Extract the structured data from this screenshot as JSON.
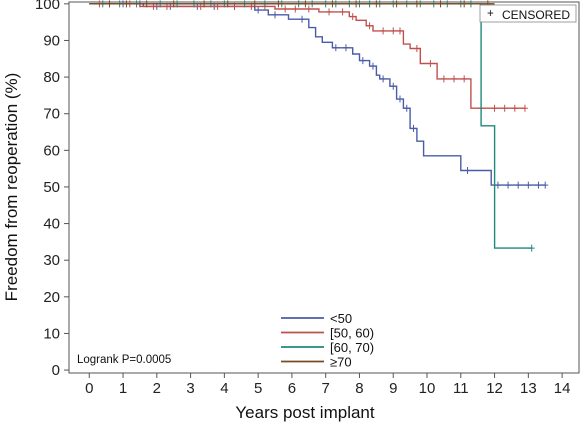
{
  "chart_data": {
    "type": "line",
    "step": true,
    "xlabel": "Years post implant",
    "ylabel": "Freedom from reoperation (%)",
    "xlim": [
      -0.6,
      14.5
    ],
    "ylim": [
      -0.8,
      100.5
    ],
    "x_ticks": [
      0,
      1,
      2,
      3,
      4,
      5,
      6,
      7,
      8,
      9,
      10,
      11,
      12,
      13,
      14
    ],
    "y_ticks": [
      0,
      10,
      20,
      30,
      40,
      50,
      60,
      70,
      80,
      90,
      100
    ],
    "grid": false,
    "censored_label": "CENSORED",
    "censored_symbol": "+",
    "annotation": "Logrank P=0.0005",
    "legend_position": "bottom-center",
    "series": [
      {
        "name": "<50",
        "color": "#4a5ba8",
        "points": [
          [
            0,
            100
          ],
          [
            1.6,
            100
          ],
          [
            1.6,
            99.3
          ],
          [
            4.9,
            99.3
          ],
          [
            4.9,
            98.3
          ],
          [
            5.3,
            98.3
          ],
          [
            5.3,
            97
          ],
          [
            5.9,
            97
          ],
          [
            5.9,
            95.8
          ],
          [
            6.5,
            95.8
          ],
          [
            6.5,
            93.5
          ],
          [
            6.7,
            93.5
          ],
          [
            6.7,
            91
          ],
          [
            6.9,
            91
          ],
          [
            6.9,
            89.5
          ],
          [
            7.2,
            89.5
          ],
          [
            7.2,
            88
          ],
          [
            7.8,
            88
          ],
          [
            7.8,
            86.3
          ],
          [
            8.0,
            86.3
          ],
          [
            8.0,
            84.5
          ],
          [
            8.3,
            84.5
          ],
          [
            8.3,
            83
          ],
          [
            8.5,
            83
          ],
          [
            8.5,
            80.5
          ],
          [
            8.6,
            80.5
          ],
          [
            8.6,
            79.5
          ],
          [
            8.9,
            79.5
          ],
          [
            8.9,
            77.5
          ],
          [
            9.1,
            77.5
          ],
          [
            9.1,
            74
          ],
          [
            9.3,
            74
          ],
          [
            9.3,
            71.5
          ],
          [
            9.5,
            71.5
          ],
          [
            9.5,
            66
          ],
          [
            9.7,
            66
          ],
          [
            9.7,
            62.5
          ],
          [
            9.9,
            62.5
          ],
          [
            9.9,
            58.5
          ],
          [
            11.0,
            58.5
          ],
          [
            11.0,
            54.5
          ],
          [
            11.9,
            54.5
          ],
          [
            11.9,
            50.5
          ],
          [
            13.5,
            50.5
          ]
        ],
        "censored_x": [
          1.0,
          1.5,
          2.0,
          2.4,
          3.2,
          3.7,
          4.3,
          5.0,
          5.5,
          6.3,
          7.3,
          7.6,
          8.1,
          8.4,
          8.7,
          9.0,
          9.2,
          9.4,
          9.6,
          11.2,
          12.1,
          12.4,
          12.7,
          13.0,
          13.3,
          13.5
        ]
      },
      {
        "name": "[50, 60)",
        "color": "#c0504d",
        "points": [
          [
            0,
            100
          ],
          [
            1.5,
            100
          ],
          [
            1.5,
            99.3
          ],
          [
            5.5,
            99.3
          ],
          [
            5.5,
            98.6
          ],
          [
            6.8,
            98.6
          ],
          [
            6.8,
            97.8
          ],
          [
            7.7,
            97.8
          ],
          [
            7.7,
            96.5
          ],
          [
            7.9,
            96.5
          ],
          [
            7.9,
            95.5
          ],
          [
            8.2,
            95.5
          ],
          [
            8.2,
            94
          ],
          [
            8.4,
            94
          ],
          [
            8.4,
            92.6
          ],
          [
            9.3,
            92.6
          ],
          [
            9.3,
            89
          ],
          [
            9.5,
            89
          ],
          [
            9.5,
            87.8
          ],
          [
            9.8,
            87.8
          ],
          [
            9.8,
            83.7
          ],
          [
            10.3,
            83.7
          ],
          [
            10.3,
            79.5
          ],
          [
            11.3,
            79.5
          ],
          [
            11.3,
            71.5
          ],
          [
            12.9,
            71.5
          ]
        ],
        "censored_x": [
          0.3,
          1.2,
          1.9,
          2.3,
          3.3,
          3.8,
          4.3,
          4.8,
          5.2,
          5.8,
          6.1,
          6.5,
          7.1,
          7.5,
          7.8,
          8.3,
          8.7,
          9.0,
          9.2,
          9.7,
          10.1,
          10.5,
          10.8,
          11.1,
          11.6,
          12.0,
          12.3,
          12.6,
          12.9
        ]
      },
      {
        "name": "[60, 70)",
        "color": "#1f8a7a",
        "points": [
          [
            0,
            100
          ],
          [
            11.6,
            100
          ],
          [
            11.6,
            66.7
          ],
          [
            12.0,
            66.7
          ],
          [
            12.0,
            33.3
          ],
          [
            13.1,
            33.3
          ]
        ],
        "censored_x": [
          0.4,
          0.9,
          1.4,
          2.1,
          2.6,
          3.1,
          3.6,
          4.0,
          4.6,
          5.2,
          5.7,
          6.2,
          6.6,
          7.0,
          7.3,
          7.7,
          8.0,
          8.3,
          8.6,
          9.0,
          9.4,
          9.8,
          10.2,
          10.6,
          11.0,
          11.3,
          13.1
        ]
      },
      {
        "name": "≥70",
        "color": "#7a4a22",
        "points": [
          [
            0,
            100
          ],
          [
            12.0,
            100
          ]
        ],
        "censored_x": [
          0.6,
          1.1,
          1.7,
          2.5,
          3.4,
          4.1,
          4.9,
          5.6,
          6.4,
          7.2,
          7.9,
          8.5,
          9.1,
          9.7,
          10.4,
          11.1,
          11.8
        ]
      }
    ]
  }
}
